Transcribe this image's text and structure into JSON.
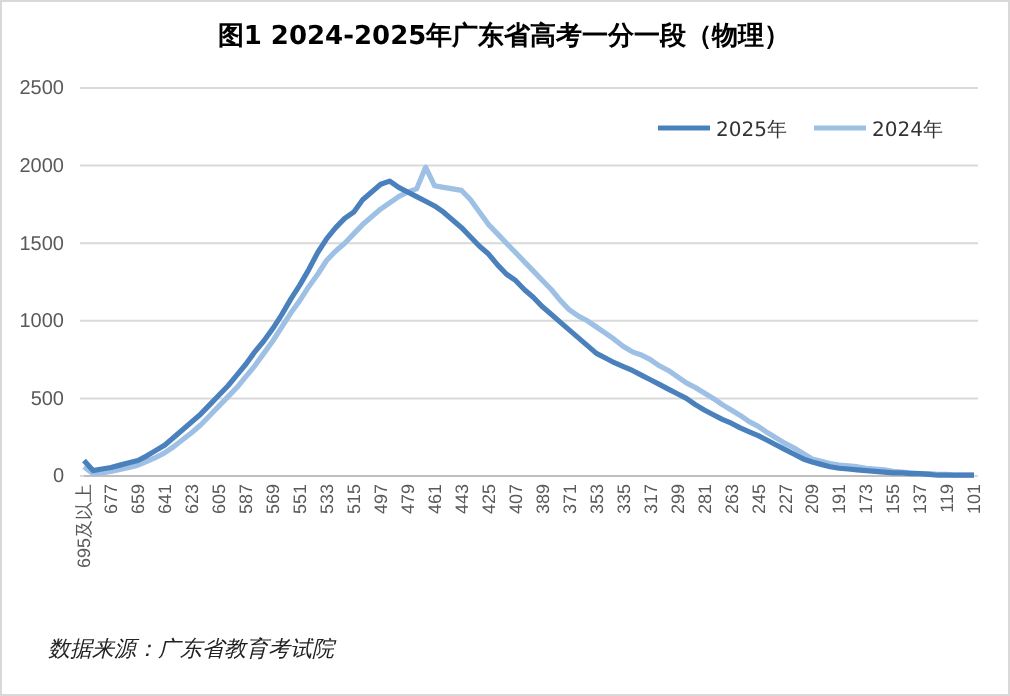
{
  "chart_data": {
    "type": "line",
    "title": "图1  2024-2025年广东省高考一分一段（物理）",
    "categories": [
      "695及以上",
      null,
      null,
      "677",
      null,
      null,
      "659",
      null,
      null,
      "641",
      null,
      null,
      "623",
      null,
      null,
      "605",
      null,
      null,
      "587",
      null,
      null,
      "569",
      null,
      null,
      "551",
      null,
      null,
      "533",
      null,
      null,
      "515",
      null,
      null,
      "497",
      null,
      null,
      "479",
      null,
      null,
      "461",
      null,
      null,
      "443",
      null,
      null,
      "425",
      null,
      null,
      "407",
      null,
      null,
      "389",
      null,
      null,
      "371",
      null,
      null,
      "353",
      null,
      null,
      "335",
      null,
      null,
      "317",
      null,
      null,
      "299",
      null,
      null,
      "281",
      null,
      null,
      "263",
      null,
      null,
      "245",
      null,
      null,
      "227",
      null,
      null,
      "209",
      null,
      null,
      "191",
      null,
      null,
      "173",
      null,
      null,
      "155",
      null,
      null,
      "137",
      null,
      null,
      "119",
      null,
      null,
      "101"
    ],
    "series": [
      {
        "name": "2025年",
        "color": "#4a81bd",
        "values": [
          100,
          35,
          45,
          55,
          70,
          85,
          100,
          130,
          165,
          200,
          250,
          300,
          350,
          400,
          460,
          520,
          580,
          650,
          720,
          800,
          870,
          950,
          1040,
          1140,
          1230,
          1330,
          1440,
          1530,
          1600,
          1660,
          1700,
          1780,
          1830,
          1880,
          1900,
          1860,
          1830,
          1800,
          1770,
          1740,
          1700,
          1650,
          1600,
          1540,
          1480,
          1430,
          1360,
          1300,
          1260,
          1200,
          1150,
          1090,
          1040,
          990,
          940,
          890,
          840,
          790,
          760,
          730,
          705,
          680,
          650,
          620,
          590,
          560,
          530,
          500,
          460,
          425,
          395,
          365,
          340,
          310,
          285,
          260,
          230,
          200,
          170,
          140,
          110,
          90,
          75,
          60,
          50,
          45,
          40,
          35,
          30,
          25,
          20,
          20,
          15,
          15,
          10,
          5,
          5,
          5,
          5,
          5
        ]
      },
      {
        "name": "2024年",
        "color": "#9dc0e4",
        "values": [
          60,
          15,
          20,
          30,
          42,
          55,
          70,
          95,
          120,
          150,
          190,
          235,
          280,
          330,
          390,
          450,
          510,
          570,
          640,
          710,
          790,
          870,
          960,
          1050,
          1130,
          1220,
          1300,
          1390,
          1450,
          1500,
          1560,
          1620,
          1670,
          1720,
          1760,
          1800,
          1830,
          1850,
          1990,
          1870,
          1860,
          1850,
          1840,
          1780,
          1700,
          1620,
          1560,
          1500,
          1440,
          1380,
          1320,
          1260,
          1200,
          1130,
          1070,
          1030,
          1000,
          960,
          920,
          880,
          834,
          800,
          780,
          750,
          710,
          680,
          640,
          600,
          570,
          535,
          500,
          460,
          425,
          390,
          350,
          320,
          280,
          245,
          210,
          180,
          145,
          110,
          95,
          80,
          70,
          65,
          60,
          50,
          45,
          40,
          30,
          25,
          20,
          15,
          15,
          10,
          10,
          5,
          5,
          5
        ]
      }
    ],
    "ylim": [
      0,
      2500
    ],
    "yticks": [
      0,
      500,
      1000,
      1500,
      2000,
      2500
    ],
    "grid": "y",
    "legend": "top right",
    "marker": "none",
    "line_style": "solid",
    "annotations": [
      "数据来源：广东省教育考试院"
    ]
  }
}
